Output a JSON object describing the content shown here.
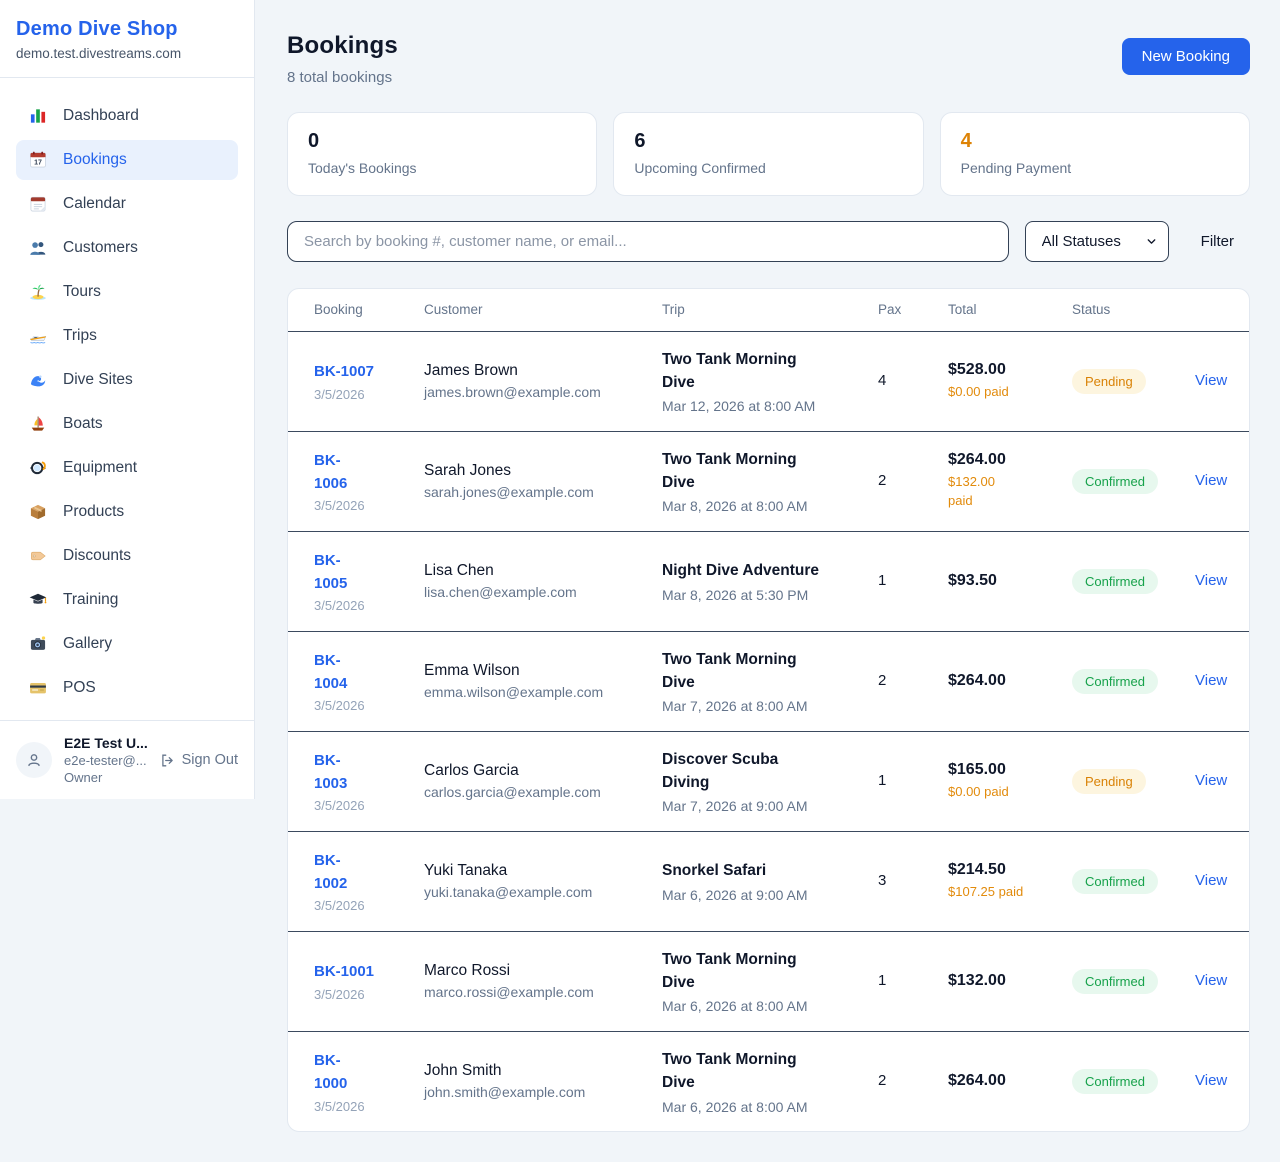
{
  "sidebar": {
    "brand": {
      "name": "Demo Dive Shop",
      "domain": "demo.test.divestreams.com"
    },
    "items": [
      {
        "label": "Dashboard",
        "icon": "dashboard",
        "active": false
      },
      {
        "label": "Bookings",
        "icon": "bookings",
        "active": true
      },
      {
        "label": "Calendar",
        "icon": "calendar",
        "active": false
      },
      {
        "label": "Customers",
        "icon": "customers",
        "active": false
      },
      {
        "label": "Tours",
        "icon": "tours",
        "active": false
      },
      {
        "label": "Trips",
        "icon": "trips",
        "active": false
      },
      {
        "label": "Dive Sites",
        "icon": "dive-sites",
        "active": false
      },
      {
        "label": "Boats",
        "icon": "boats",
        "active": false
      },
      {
        "label": "Equipment",
        "icon": "equipment",
        "active": false
      },
      {
        "label": "Products",
        "icon": "products",
        "active": false
      },
      {
        "label": "Discounts",
        "icon": "discounts",
        "active": false
      },
      {
        "label": "Training",
        "icon": "training",
        "active": false
      },
      {
        "label": "Gallery",
        "icon": "gallery",
        "active": false
      },
      {
        "label": "POS",
        "icon": "pos",
        "active": false
      }
    ],
    "user": {
      "name": "E2E Test U...",
      "email": "e2e-tester@...",
      "role": "Owner",
      "sign_out_label": "Sign Out"
    }
  },
  "header": {
    "title": "Bookings",
    "subtitle": "8 total bookings",
    "new_booking_label": "New Booking"
  },
  "stats": [
    {
      "value": "0",
      "label": "Today's Bookings",
      "value_color": "#0f172a"
    },
    {
      "value": "6",
      "label": "Upcoming Confirmed",
      "value_color": "#0f172a"
    },
    {
      "value": "4",
      "label": "Pending Payment",
      "value_color": "#dd8306"
    }
  ],
  "filters": {
    "search_placeholder": "Search by booking #, customer name, or email...",
    "status_selected": "All Statuses",
    "filter_label": "Filter"
  },
  "table": {
    "columns": [
      "Booking",
      "Customer",
      "Trip",
      "Pax",
      "Total",
      "Status",
      ""
    ],
    "rows": [
      {
        "id": "BK-1007",
        "id_two_lines": false,
        "date": "3/5/2026",
        "customer": "James Brown",
        "email": "james.brown@example.com",
        "trip": "Two Tank Morning Dive",
        "trip_two_lines": true,
        "trip_time": "Mar 12, 2026 at 8:00 AM",
        "pax": "4",
        "total": "$528.00",
        "paid": "$0.00 paid",
        "paid_two_lines": false,
        "status": "Pending",
        "action": "View"
      },
      {
        "id": "BK-1006",
        "id_two_lines": true,
        "date": "3/5/2026",
        "customer": "Sarah Jones",
        "email": "sarah.jones@example.com",
        "trip": "Two Tank Morning Dive",
        "trip_two_lines": true,
        "trip_time": "Mar 8, 2026 at 8:00 AM",
        "pax": "2",
        "total": "$264.00",
        "paid": "$132.00 paid",
        "paid_two_lines": true,
        "status": "Confirmed",
        "action": "View"
      },
      {
        "id": "BK-1005",
        "id_two_lines": true,
        "date": "3/5/2026",
        "customer": "Lisa Chen",
        "email": "lisa.chen@example.com",
        "trip": "Night Dive Adventure",
        "trip_two_lines": false,
        "trip_time": "Mar 8, 2026 at 5:30 PM",
        "pax": "1",
        "total": "$93.50",
        "paid": null,
        "paid_two_lines": false,
        "status": "Confirmed",
        "action": "View"
      },
      {
        "id": "BK-1004",
        "id_two_lines": true,
        "date": "3/5/2026",
        "customer": "Emma Wilson",
        "email": "emma.wilson@example.com",
        "trip": "Two Tank Morning Dive",
        "trip_two_lines": true,
        "trip_time": "Mar 7, 2026 at 8:00 AM",
        "pax": "2",
        "total": "$264.00",
        "paid": null,
        "paid_two_lines": false,
        "status": "Confirmed",
        "action": "View"
      },
      {
        "id": "BK-1003",
        "id_two_lines": true,
        "date": "3/5/2026",
        "customer": "Carlos Garcia",
        "email": "carlos.garcia@example.com",
        "trip": "Discover Scuba Diving",
        "trip_two_lines": true,
        "trip_time": "Mar 7, 2026 at 9:00 AM",
        "pax": "1",
        "total": "$165.00",
        "paid": "$0.00 paid",
        "paid_two_lines": false,
        "status": "Pending",
        "action": "View"
      },
      {
        "id": "BK-1002",
        "id_two_lines": true,
        "date": "3/5/2026",
        "customer": "Yuki Tanaka",
        "email": "yuki.tanaka@example.com",
        "trip": "Snorkel Safari",
        "trip_two_lines": false,
        "trip_time": "Mar 6, 2026 at 9:00 AM",
        "pax": "3",
        "total": "$214.50",
        "paid": "$107.25 paid",
        "paid_two_lines": false,
        "status": "Confirmed",
        "action": "View"
      },
      {
        "id": "BK-1001",
        "id_two_lines": false,
        "date": "3/5/2026",
        "customer": "Marco Rossi",
        "email": "marco.rossi@example.com",
        "trip": "Two Tank Morning Dive",
        "trip_two_lines": true,
        "trip_time": "Mar 6, 2026 at 8:00 AM",
        "pax": "1",
        "total": "$132.00",
        "paid": null,
        "paid_two_lines": false,
        "status": "Confirmed",
        "action": "View"
      },
      {
        "id": "BK-1000",
        "id_two_lines": true,
        "date": "3/5/2026",
        "customer": "John Smith",
        "email": "john.smith@example.com",
        "trip": "Two Tank Morning Dive",
        "trip_two_lines": true,
        "trip_time": "Mar 6, 2026 at 8:00 AM",
        "pax": "2",
        "total": "$264.00",
        "paid": null,
        "paid_two_lines": false,
        "status": "Confirmed",
        "action": "View"
      }
    ]
  },
  "status_styles": {
    "Pending": {
      "bg": "#fdf5df",
      "text": "#d98206"
    },
    "Confirmed": {
      "bg": "#e7f8ee",
      "text": "#17a24b"
    }
  },
  "colors": {
    "accent_blue": "#2563eb",
    "paid_orange": "#e28b0c",
    "page_background": "#f1f5f9"
  }
}
